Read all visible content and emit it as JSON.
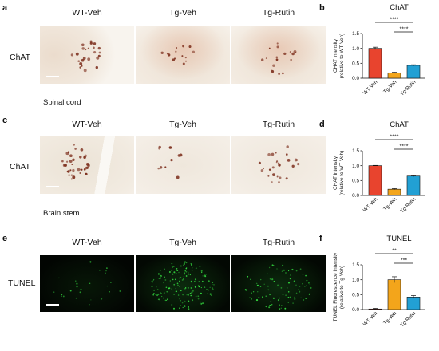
{
  "panels": {
    "a": "a",
    "b": "b",
    "c": "c",
    "d": "d",
    "e": "e",
    "f": "f"
  },
  "groups": [
    "WT-Veh",
    "Tg-Veh",
    "Tg-Rutin"
  ],
  "rows": [
    {
      "row_label": "ChAT",
      "tissue_label": "Spinal cord"
    },
    {
      "row_label": "ChAT",
      "tissue_label": "Brain stem"
    },
    {
      "row_label": "TUNEL",
      "tissue_label": ""
    }
  ],
  "colors": {
    "wt": "#e8442e",
    "tg_veh": "#f3a51b",
    "tg_rutin": "#22a0d4",
    "dab": "#7a2a18",
    "fluor": "#3dff4a"
  },
  "chart_data": [
    {
      "type": "bar",
      "title": "ChAT",
      "categories": [
        "WT-Veh",
        "Tg-Veh",
        "Tg-Rutin"
      ],
      "values": [
        1.0,
        0.18,
        0.43
      ],
      "errors": [
        0.04,
        0.02,
        0.02
      ],
      "ylabel": "CHAT intensity\n(relative to WT-Veh)",
      "ylim": [
        0,
        1.5
      ],
      "yticks": [
        "0.0",
        "0.5",
        "1.0",
        "1.5"
      ],
      "significance": [
        {
          "from": 0,
          "to": 2,
          "label": "****"
        },
        {
          "from": 1,
          "to": 2,
          "label": "****"
        }
      ]
    },
    {
      "type": "bar",
      "title": "ChAT",
      "categories": [
        "WT-Veh",
        "Tg-Veh",
        "Tg-Rutin"
      ],
      "values": [
        1.0,
        0.21,
        0.65
      ],
      "errors": [
        0.01,
        0.02,
        0.02
      ],
      "ylabel": "CHAT intensity\n(relative to WT-Veh)",
      "ylim": [
        0,
        1.5
      ],
      "yticks": [
        "0.0",
        "0.5",
        "1.0",
        "1.5"
      ],
      "significance": [
        {
          "from": 0,
          "to": 2,
          "label": "****"
        },
        {
          "from": 1,
          "to": 2,
          "label": "****"
        }
      ]
    },
    {
      "type": "bar",
      "title": "TUNEL",
      "categories": [
        "WT-Veh",
        "Tg-Veh",
        "Tg-Rutin"
      ],
      "values": [
        0.02,
        1.0,
        0.42
      ],
      "errors": [
        0.02,
        0.1,
        0.05
      ],
      "ylabel": "TUNEL Fluorescence Intensity\n(relative to Tg-Veh)",
      "ylim": [
        0,
        1.5
      ],
      "yticks": [
        "0.0",
        "0.5",
        "1.0",
        "1.5"
      ],
      "significance": [
        {
          "from": 0,
          "to": 2,
          "label": "**"
        },
        {
          "from": 1,
          "to": 2,
          "label": "***"
        }
      ]
    }
  ]
}
